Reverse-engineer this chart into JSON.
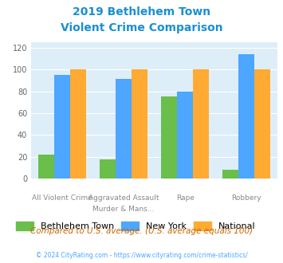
{
  "title_line1": "2019 Bethlehem Town",
  "title_line2": "Violent Crime Comparison",
  "cat_labels_line1": [
    "",
    "Aggravated Assault",
    "",
    ""
  ],
  "cat_labels_line2": [
    "All Violent Crime",
    "Murder & Mans...",
    "Rape",
    "Robbery"
  ],
  "bethlehem": [
    22,
    18,
    75,
    8
  ],
  "new_york": [
    95,
    91,
    80,
    114
  ],
  "national": [
    100,
    100,
    100,
    100
  ],
  "bethlehem_color": "#6abf4b",
  "new_york_color": "#4da6ff",
  "national_color": "#ffaa33",
  "ylim": [
    0,
    125
  ],
  "yticks": [
    0,
    20,
    40,
    60,
    80,
    100,
    120
  ],
  "background_color": "#ddeef8",
  "title_color": "#1a8fd1",
  "footnote": "Compared to U.S. average. (U.S. average equals 100)",
  "copyright": "© 2024 CityRating.com - https://www.cityrating.com/crime-statistics/",
  "footnote_color": "#cc6600",
  "copyright_color": "#4da6ff"
}
